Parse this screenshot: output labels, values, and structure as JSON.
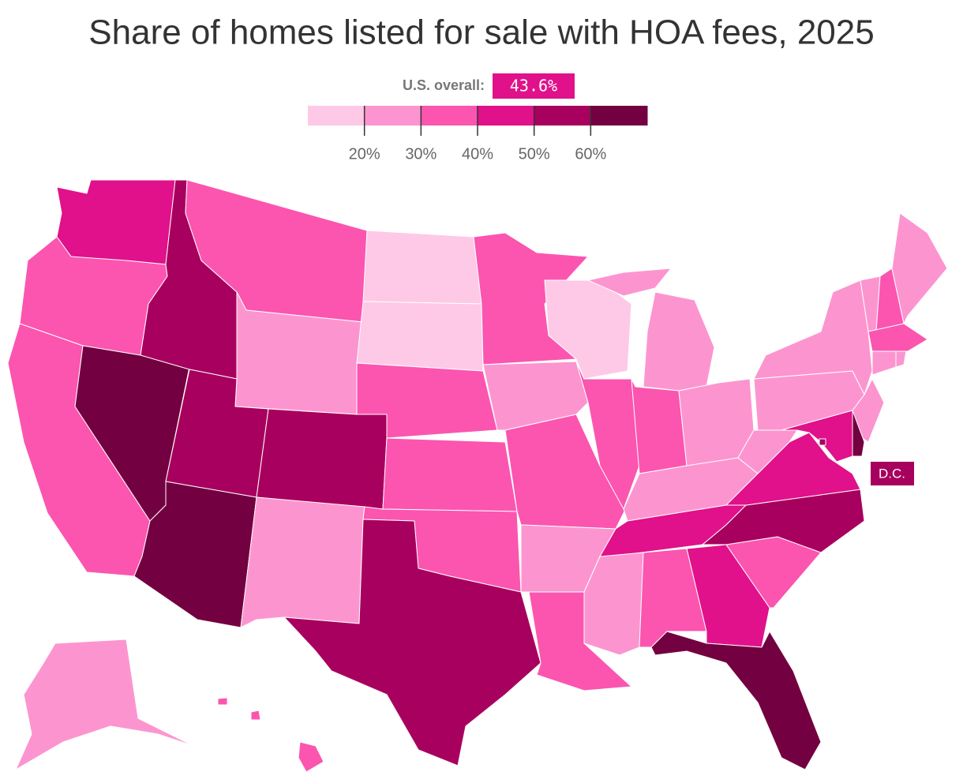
{
  "chart_data": {
    "type": "choropleth",
    "title": "Share of homes listed for sale with HOA fees, 2025",
    "overall": {
      "label": "U.S. overall:",
      "value": 43.6,
      "value_label": "43.6%"
    },
    "legend_lim": [
      10,
      70
    ],
    "ticks": [
      {
        "value": 20,
        "label": "20%"
      },
      {
        "value": 30,
        "label": "30%"
      },
      {
        "value": 40,
        "label": "40%"
      },
      {
        "value": 50,
        "label": "50%"
      },
      {
        "value": 60,
        "label": "60%"
      }
    ],
    "colors": [
      "#fec9e6",
      "#fc95cf",
      "#fb55b0",
      "#e0118a",
      "#a8005e",
      "#730040"
    ],
    "values": [
      45,
      35,
      35,
      65,
      55,
      35,
      25,
      55,
      65,
      55,
      25,
      15,
      15,
      35,
      35,
      35,
      55,
      35,
      25,
      35,
      25,
      35,
      15,
      35,
      25,
      35,
      25,
      25,
      45,
      25,
      35,
      45,
      65,
      35,
      55,
      45,
      25,
      25,
      25,
      25,
      35,
      25,
      35,
      25,
      25,
      25,
      65,
      45,
      25,
      35,
      55
    ],
    "annotation": "D.C."
  }
}
